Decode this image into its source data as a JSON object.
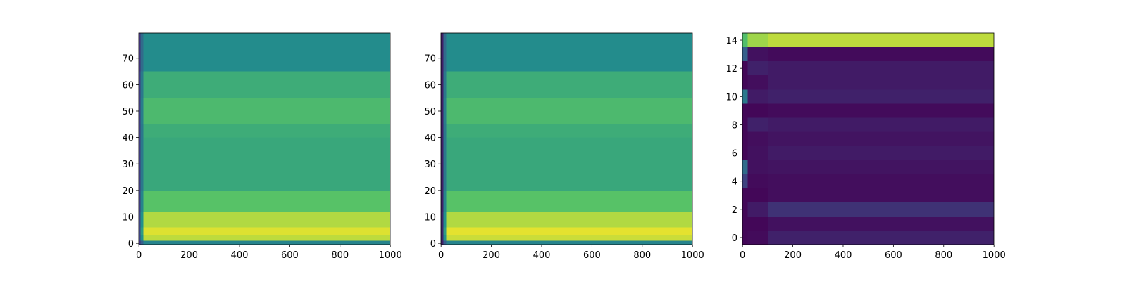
{
  "chart_data": [
    {
      "type": "heatmap",
      "colormap": "viridis",
      "xlim": [
        -0.5,
        999.5
      ],
      "ylim": [
        -0.5,
        79.5
      ],
      "xticks": [
        0,
        200,
        400,
        600,
        800,
        1000
      ],
      "yticks": [
        0,
        10,
        20,
        30,
        40,
        50,
        60,
        70
      ],
      "x_edges": [
        -0.5,
        6,
        18,
        999.5
      ],
      "y_edges": [
        -0.5,
        1,
        3,
        6,
        12,
        20,
        40,
        45,
        55,
        65,
        79.5
      ],
      "z": [
        [
          0.15,
          0.3,
          0.45
        ],
        [
          0.2,
          0.5,
          0.9
        ],
        [
          0.2,
          0.55,
          0.95
        ],
        [
          0.2,
          0.5,
          0.88
        ],
        [
          0.18,
          0.45,
          0.72
        ],
        [
          0.18,
          0.4,
          0.6
        ],
        [
          0.18,
          0.4,
          0.62
        ],
        [
          0.18,
          0.42,
          0.68
        ],
        [
          0.18,
          0.4,
          0.62
        ],
        [
          0.15,
          0.35,
          0.48
        ]
      ]
    },
    {
      "type": "heatmap",
      "colormap": "viridis",
      "xlim": [
        -0.5,
        999.5
      ],
      "ylim": [
        -0.5,
        79.5
      ],
      "xticks": [
        0,
        200,
        400,
        600,
        800,
        1000
      ],
      "yticks": [
        0,
        10,
        20,
        30,
        40,
        50,
        60,
        70
      ],
      "x_edges": [
        -0.5,
        10,
        20,
        999.5
      ],
      "y_edges": [
        -0.5,
        1,
        3,
        6,
        12,
        20,
        40,
        45,
        55,
        65,
        79.5
      ],
      "z": [
        [
          0.1,
          0.3,
          0.45
        ],
        [
          0.12,
          0.5,
          0.92
        ],
        [
          0.12,
          0.55,
          0.96
        ],
        [
          0.12,
          0.5,
          0.88
        ],
        [
          0.1,
          0.45,
          0.72
        ],
        [
          0.1,
          0.4,
          0.6
        ],
        [
          0.1,
          0.4,
          0.62
        ],
        [
          0.1,
          0.42,
          0.68
        ],
        [
          0.1,
          0.4,
          0.62
        ],
        [
          0.1,
          0.35,
          0.48
        ]
      ]
    },
    {
      "type": "heatmap",
      "colormap": "viridis",
      "xlim": [
        -0.5,
        999.5
      ],
      "ylim": [
        -0.5,
        14.5
      ],
      "xticks": [
        0,
        200,
        400,
        600,
        800,
        1000
      ],
      "yticks": [
        0,
        2,
        4,
        6,
        8,
        10,
        12,
        14
      ],
      "x_edges": [
        -0.5,
        20,
        100,
        999.5
      ],
      "y_edges": [
        -0.5,
        0.5,
        1.5,
        2.5,
        3.5,
        4.5,
        5.5,
        6.5,
        7.5,
        8.5,
        9.5,
        10.5,
        11.5,
        12.5,
        13.5,
        14.5
      ],
      "z": [
        [
          0.02,
          0.03,
          0.1
        ],
        [
          0.02,
          0.02,
          0.05
        ],
        [
          0.02,
          0.08,
          0.15
        ],
        [
          0.02,
          0.02,
          0.04
        ],
        [
          0.2,
          0.03,
          0.04
        ],
        [
          0.35,
          0.05,
          0.06
        ],
        [
          0.02,
          0.05,
          0.08
        ],
        [
          0.02,
          0.04,
          0.06
        ],
        [
          0.02,
          0.1,
          0.08
        ],
        [
          0.02,
          0.02,
          0.03
        ],
        [
          0.4,
          0.08,
          0.1
        ],
        [
          0.02,
          0.04,
          0.08
        ],
        [
          0.02,
          0.1,
          0.08
        ],
        [
          0.3,
          0.05,
          0.03
        ],
        [
          0.7,
          0.85,
          0.9
        ]
      ]
    }
  ]
}
